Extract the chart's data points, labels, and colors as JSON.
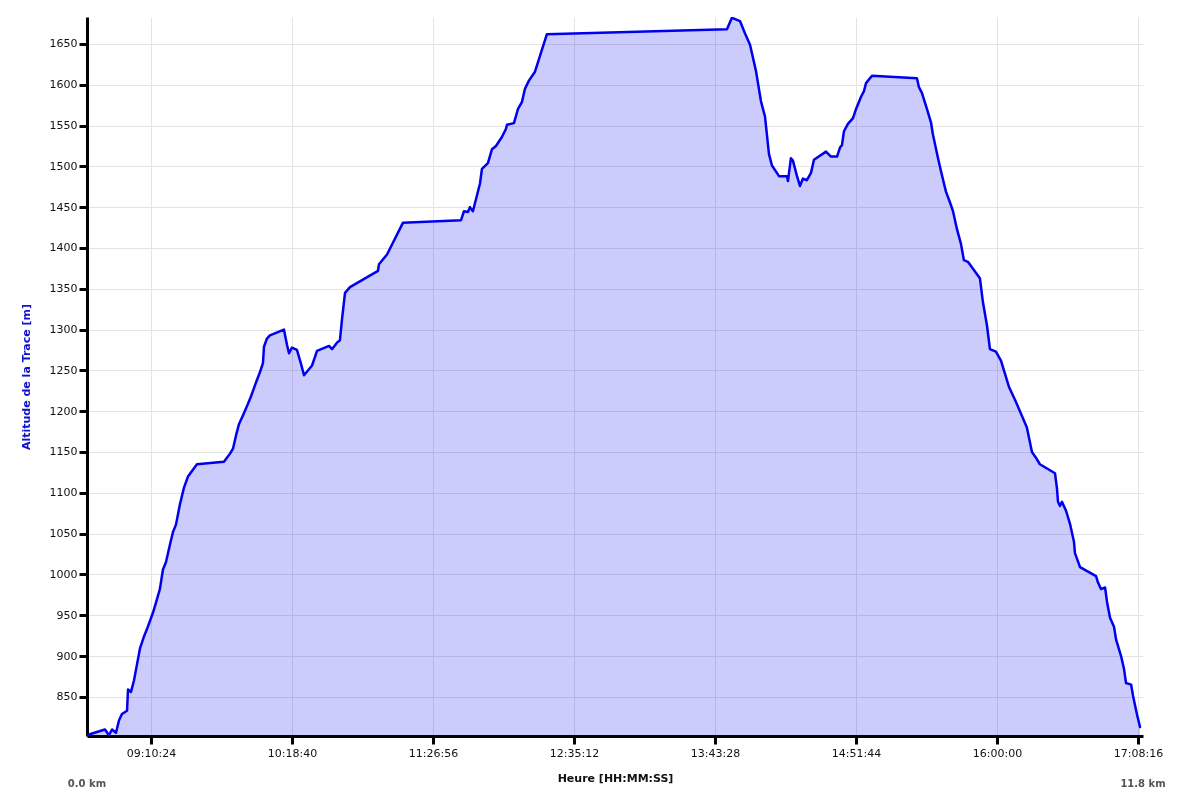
{
  "chart_data": {
    "type": "area",
    "xlabel": "Heure [HH:MM:SS]",
    "ylabel": "Altitude de la Trace [m]",
    "x": [
      8.657,
      8.802,
      8.834,
      8.859,
      8.891,
      8.915,
      8.939,
      8.98,
      8.988,
      9.012,
      9.036,
      9.052,
      9.084,
      9.117,
      9.141,
      9.189,
      9.213,
      9.245,
      9.27,
      9.294,
      9.327,
      9.351,
      9.375,
      9.407,
      9.439,
      9.472,
      9.544,
      9.762,
      9.811,
      9.835,
      9.859,
      9.883,
      9.916,
      9.956,
      9.98,
      10.013,
      10.053,
      10.077,
      10.085,
      10.109,
      10.133,
      10.246,
      10.271,
      10.287,
      10.311,
      10.351,
      10.384,
      10.408,
      10.473,
      10.513,
      10.61,
      10.634,
      10.674,
      10.698,
      10.715,
      10.739,
      10.779,
      11.005,
      11.013,
      11.078,
      11.207,
      11.675,
      11.699,
      11.731,
      11.747,
      11.771,
      11.828,
      11.844,
      11.892,
      11.925,
      11.957,
      12.005,
      12.038,
      12.046,
      12.102,
      12.134,
      12.167,
      12.191,
      12.223,
      12.272,
      12.368,
      13.821,
      13.861,
      13.926,
      13.966,
      14.007,
      14.055,
      14.095,
      14.128,
      14.16,
      14.184,
      14.241,
      14.305,
      14.313,
      14.337,
      14.353,
      14.386,
      14.41,
      14.434,
      14.466,
      14.499,
      14.523,
      14.62,
      14.66,
      14.709,
      14.733,
      14.749,
      14.765,
      14.797,
      14.838,
      14.862,
      14.902,
      14.926,
      14.943,
      14.991,
      15.354,
      15.37,
      15.394,
      15.435,
      15.467,
      15.483,
      15.524,
      15.548,
      15.588,
      15.62,
      15.645,
      15.677,
      15.709,
      15.733,
      15.765,
      15.862,
      15.886,
      15.919,
      15.943,
      15.991,
      16.032,
      16.096,
      16.145,
      16.185,
      16.241,
      16.282,
      16.314,
      16.346,
      16.468,
      16.484,
      16.492,
      16.508,
      16.524,
      16.557,
      16.589,
      16.621,
      16.629,
      16.67,
      16.799,
      16.815,
      16.839,
      16.872,
      16.888,
      16.912,
      16.944,
      16.961,
      17.001,
      17.025,
      17.041,
      17.082,
      17.098,
      17.13,
      17.154
    ],
    "series": [
      {
        "color": "#0000ee",
        "values": [
          803,
          810,
          803,
          810,
          806,
          821,
          829,
          833,
          859,
          856,
          870,
          883,
          909,
          924,
          933,
          953,
          965,
          982,
          1006,
          1015,
          1037,
          1052,
          1061,
          1086,
          1106,
          1120,
          1135,
          1138,
          1148,
          1154,
          1170,
          1184,
          1195,
          1209,
          1218,
          1232,
          1248,
          1259,
          1279,
          1289,
          1293,
          1300,
          1281,
          1271,
          1278,
          1275,
          1258,
          1244,
          1256,
          1274,
          1280,
          1276,
          1284,
          1287,
          1313,
          1345,
          1352,
          1372,
          1380,
          1392,
          1431,
          1434,
          1445,
          1444,
          1450,
          1445,
          1479,
          1497,
          1504,
          1521,
          1525,
          1536,
          1546,
          1551,
          1553,
          1570,
          1579,
          1595,
          1605,
          1616,
          1662,
          1668,
          1682,
          1678,
          1663,
          1649,
          1617,
          1580,
          1561,
          1515,
          1501,
          1488,
          1488,
          1482,
          1510,
          1507,
          1488,
          1476,
          1485,
          1483,
          1492,
          1508,
          1518,
          1512,
          1512,
          1523,
          1526,
          1543,
          1552,
          1559,
          1570,
          1585,
          1592,
          1602,
          1611,
          1608,
          1597,
          1590,
          1570,
          1554,
          1539,
          1510,
          1494,
          1469,
          1456,
          1445,
          1423,
          1405,
          1385,
          1383,
          1363,
          1334,
          1305,
          1276,
          1273,
          1262,
          1230,
          1214,
          1200,
          1180,
          1150,
          1143,
          1135,
          1124,
          1105,
          1089,
          1084,
          1089,
          1078,
          1062,
          1040,
          1026,
          1009,
          998,
          990,
          982,
          984,
          966,
          947,
          936,
          920,
          900,
          884,
          867,
          865,
          851,
          828,
          813
        ]
      }
    ],
    "xlim": [
      8.657,
      17.178
    ],
    "xticks": [
      {
        "value": 9.173333,
        "label": "09:10:24"
      },
      {
        "value": 10.311111,
        "label": "10:18:40"
      },
      {
        "value": 11.448889,
        "label": "11:26:56"
      },
      {
        "value": 12.586667,
        "label": "12:35:12"
      },
      {
        "value": 13.724444,
        "label": "13:43:28"
      },
      {
        "value": 14.862222,
        "label": "14:51:44"
      },
      {
        "value": 16,
        "label": "16:00:00"
      },
      {
        "value": 17.137778,
        "label": "17:08:16"
      }
    ],
    "ylim": [
      802,
      1683
    ],
    "yticks": [
      850,
      900,
      950,
      1000,
      1050,
      1100,
      1150,
      1200,
      1250,
      1300,
      1350,
      1400,
      1450,
      1500,
      1550,
      1600,
      1650
    ],
    "grid": true,
    "annotations": [
      {
        "text": "0.0 km",
        "x": 8.657
      },
      {
        "text": "11.8 km",
        "x": 17.178
      }
    ]
  }
}
